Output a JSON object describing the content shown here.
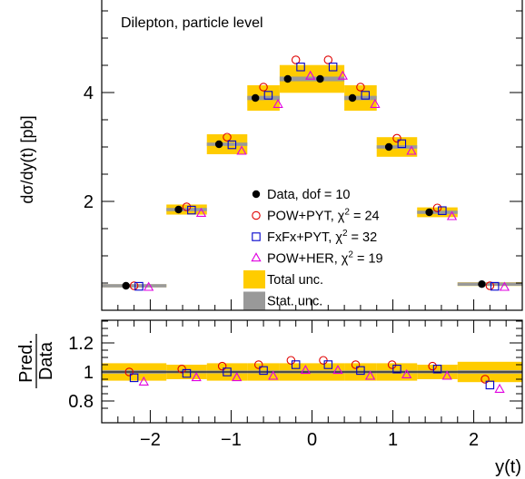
{
  "chart_data": {
    "type": "scatter",
    "top_panel": {
      "annotation": "Dilepton, particle level",
      "ylabel": "dσ/dy(t) [pb]",
      "yticks": [
        "2",
        "4"
      ],
      "ylim": [
        0,
        5.5
      ]
    },
    "ratio_panel": {
      "ylabel_num": "Pred.",
      "ylabel_den": "Data",
      "yticks": [
        "0.8",
        "1",
        "1.2"
      ],
      "ylim": [
        0.7,
        1.35
      ]
    },
    "xlabel": "y(t)",
    "xticks": [
      "−2",
      "−1",
      "0",
      "1",
      "2"
    ],
    "xlim": [
      -2.6,
      2.6
    ],
    "bins": [
      [
        -2.6,
        -1.8
      ],
      [
        -1.8,
        -1.3
      ],
      [
        -1.3,
        -0.8
      ],
      [
        -0.8,
        -0.4
      ],
      [
        -0.4,
        0.0
      ],
      [
        0.0,
        0.4
      ],
      [
        0.4,
        0.8
      ],
      [
        0.8,
        1.3
      ],
      [
        1.3,
        1.8
      ],
      [
        1.8,
        2.6
      ]
    ],
    "bin_centers": [
      -2.2,
      -1.55,
      -1.05,
      -0.6,
      -0.2,
      0.2,
      0.6,
      1.05,
      1.55,
      2.2
    ],
    "series": [
      {
        "name": "Data, dof = 10",
        "marker": "filled-circle",
        "color": "#000000",
        "values": [
          0.45,
          1.85,
          3.05,
          3.9,
          4.25,
          4.25,
          3.9,
          3.0,
          1.8,
          0.48
        ]
      },
      {
        "name": "POW+PYT, χ² = 24",
        "marker": "open-circle",
        "color": "#e00000",
        "values": [
          0.45,
          1.9,
          3.18,
          4.1,
          4.6,
          4.6,
          4.1,
          3.16,
          1.88,
          0.45
        ]
      },
      {
        "name": "FxFx+PYT, χ² = 32",
        "marker": "open-square",
        "color": "#0000cc",
        "values": [
          0.44,
          1.84,
          3.04,
          3.95,
          4.47,
          4.47,
          3.95,
          3.06,
          1.83,
          0.44
        ]
      },
      {
        "name": "POW+HER, χ² = 19",
        "marker": "open-triangle",
        "color": "#e000e0",
        "values": [
          0.42,
          1.78,
          2.92,
          3.78,
          4.3,
          4.3,
          3.78,
          2.92,
          1.72,
          0.42
        ]
      }
    ],
    "uncertainty": {
      "total_label": "Total unc.",
      "stat_label": "Stat. unc.",
      "total_color": "#ffcc00",
      "stat_color": "#999999",
      "total_rel": [
        0.06,
        0.05,
        0.06,
        0.06,
        0.06,
        0.06,
        0.06,
        0.06,
        0.05,
        0.07
      ],
      "stat_rel": [
        0.012,
        0.01,
        0.01,
        0.01,
        0.01,
        0.01,
        0.01,
        0.01,
        0.01,
        0.012
      ]
    },
    "ratio": {
      "POW+PYT": [
        1.0,
        1.02,
        1.04,
        1.05,
        1.08,
        1.08,
        1.05,
        1.05,
        1.04,
        0.95
      ],
      "FxFx+PYT": [
        0.96,
        0.99,
        1.0,
        1.01,
        1.05,
        1.05,
        1.01,
        1.02,
        1.02,
        0.91
      ],
      "POW+HER": [
        0.93,
        0.96,
        0.96,
        0.97,
        1.01,
        1.01,
        0.97,
        0.98,
        0.97,
        0.88
      ]
    }
  }
}
